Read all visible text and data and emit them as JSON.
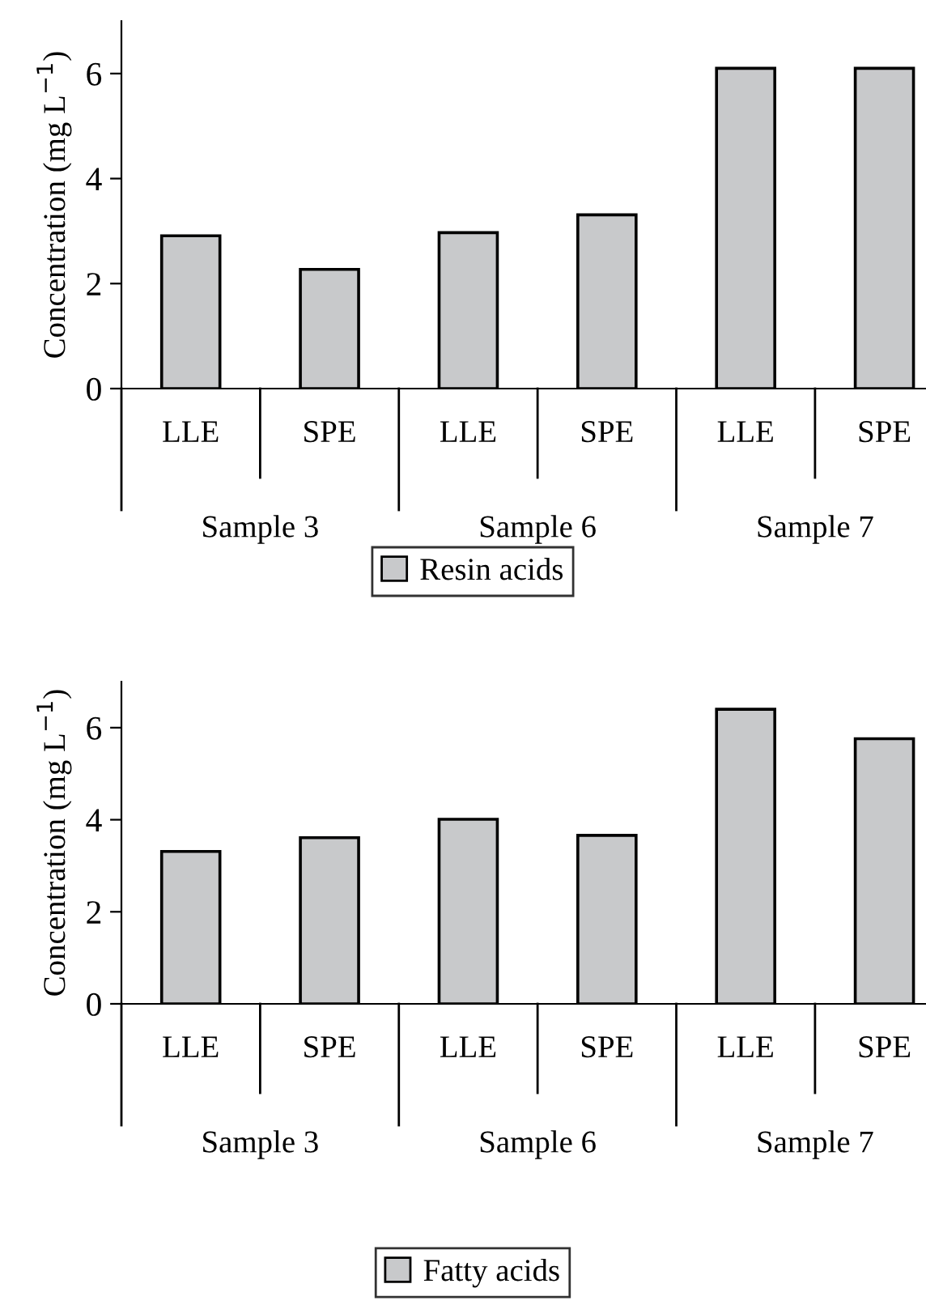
{
  "chart_data": [
    {
      "type": "bar",
      "ylabel": "Concentration (mg L$^{−1}$)",
      "categories": [
        "LLE",
        "SPE",
        "LLE",
        "SPE",
        "LLE",
        "SPE"
      ],
      "annotations": [
        "Sample 3",
        "Sample 6",
        "Sample 7"
      ],
      "series": [
        {
          "name": "Resin acids",
          "color": "#c8c9cb",
          "values": [
            2.91,
            2.27,
            2.97,
            3.31,
            6.1,
            6.1
          ]
        }
      ],
      "ylim": [
        0,
        7
      ],
      "yticks": [
        0,
        2,
        4,
        6
      ],
      "grid": false,
      "legend": "bottom"
    },
    {
      "type": "bar",
      "ylabel": "Concentration (mg L$^{−1}$)",
      "categories": [
        "LLE",
        "SPE",
        "LLE",
        "SPE",
        "LLE",
        "SPE"
      ],
      "annotations": [
        "Sample 3",
        "Sample 6",
        "Sample 7"
      ],
      "series": [
        {
          "name": "Fatty acids",
          "color": "#c8c9cb",
          "values": [
            3.31,
            3.61,
            4.01,
            3.66,
            6.4,
            5.76
          ]
        }
      ],
      "ylim": [
        0,
        7
      ],
      "yticks": [
        0,
        2,
        4,
        6
      ],
      "grid": false,
      "legend": "bottom"
    }
  ]
}
